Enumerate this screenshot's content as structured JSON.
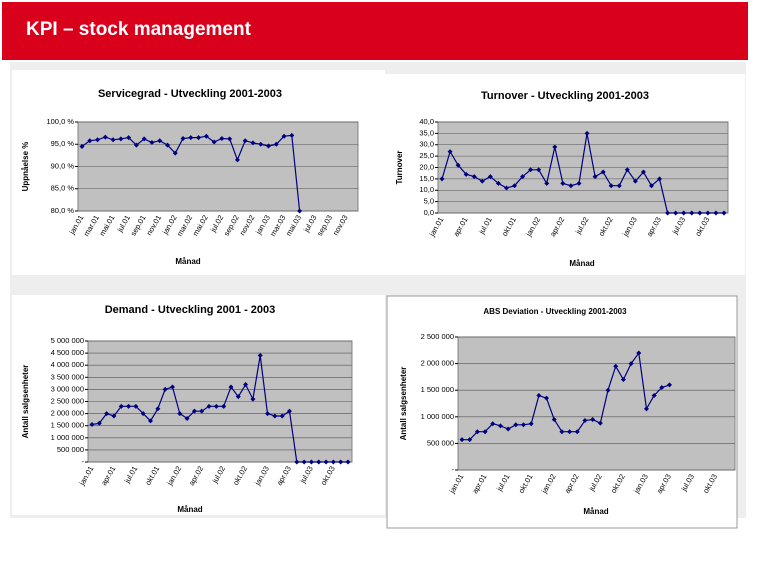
{
  "slide_title": "KPI – stock management",
  "chart_data": [
    {
      "type": "line",
      "title": "Servicegrad - Utveckling 2001-2003",
      "ylabel": "Uppnåelse %",
      "xlabel": "Månad",
      "color": "#000080",
      "grid": true,
      "categories": [
        "jan.01",
        null,
        "mar.01",
        null,
        "mai.01",
        null,
        "jul.01",
        null,
        "sep.01",
        null,
        "nov.01",
        null,
        "jan.02",
        null,
        "mar.02",
        null,
        "mai.02",
        null,
        "jul.02",
        null,
        "sep.02",
        null,
        "nov.02",
        null,
        "jan.03",
        null,
        "mar.03",
        null,
        "mai.03",
        null,
        "jul.03",
        null,
        "sep.03",
        null,
        "nov.03",
        null
      ],
      "values": [
        94.5,
        95.8,
        96.0,
        96.6,
        96.0,
        96.2,
        96.5,
        94.8,
        96.2,
        95.4,
        95.8,
        94.8,
        93.0,
        96.3,
        96.5,
        96.5,
        96.8,
        95.5,
        96.3,
        96.2,
        91.5,
        95.8,
        95.3,
        95.0,
        94.6,
        95.0,
        96.8,
        97.0,
        80.0,
        null,
        null,
        null,
        null,
        null,
        null,
        null
      ],
      "ylim": [
        80,
        100
      ],
      "yticks": [
        {
          "value": 80,
          "label": "80,0 %"
        },
        {
          "value": 85,
          "label": "85,0 %"
        },
        {
          "value": 90,
          "label": "90,0 %"
        },
        {
          "value": 95,
          "label": "95,0 %"
        },
        {
          "value": 100,
          "label": "100,0 %"
        }
      ]
    },
    {
      "type": "line",
      "title": "Turnover - Utveckling 2001-2003",
      "ylabel": "Turnover",
      "xlabel": "Månad",
      "color": "#000080",
      "grid": true,
      "categories": [
        "jan.01",
        null,
        null,
        "apr.01",
        null,
        null,
        "jul.01",
        null,
        null,
        "okt.01",
        null,
        null,
        "jan.02",
        null,
        null,
        "apr.02",
        null,
        null,
        "jul.02",
        null,
        null,
        "okt.02",
        null,
        null,
        "jan.03",
        null,
        null,
        "apr.03",
        null,
        null,
        "jul.03",
        null,
        null,
        "okt.03",
        null,
        null
      ],
      "values": [
        15,
        27,
        21,
        17,
        16,
        14,
        16,
        13,
        11,
        12,
        16,
        19,
        19,
        13,
        29,
        13,
        12,
        13,
        35,
        16,
        18,
        12,
        12,
        19,
        14,
        18,
        12,
        15,
        0,
        0,
        0,
        0,
        0,
        0,
        0,
        0
      ],
      "ylim": [
        0,
        40
      ],
      "yticks": [
        {
          "value": 0,
          "label": "0,0"
        },
        {
          "value": 5,
          "label": "5,0"
        },
        {
          "value": 10,
          "label": "10,0"
        },
        {
          "value": 15,
          "label": "15,0"
        },
        {
          "value": 20,
          "label": "20,0"
        },
        {
          "value": 25,
          "label": "25,0"
        },
        {
          "value": 30,
          "label": "30,0"
        },
        {
          "value": 35,
          "label": "35,0"
        },
        {
          "value": 40,
          "label": "40,0"
        }
      ]
    },
    {
      "type": "line",
      "title": "Demand - Utveckling 2001 - 2003",
      "ylabel": "Antall salgsenheter",
      "xlabel": "Månad",
      "color": "#000080",
      "grid": true,
      "categories": [
        "jan.01",
        null,
        null,
        "apr.01",
        null,
        null,
        "jul.01",
        null,
        null,
        "okt.01",
        null,
        null,
        "jan.02",
        null,
        null,
        "apr.02",
        null,
        null,
        "jul.02",
        null,
        null,
        "okt.02",
        null,
        null,
        "jan.03",
        null,
        null,
        "apr.03",
        null,
        null,
        "jul.03",
        null,
        null,
        "okt.03",
        null,
        null
      ],
      "values": [
        1550000,
        1600000,
        2000000,
        1900000,
        2300000,
        2300000,
        2300000,
        2000000,
        1700000,
        2200000,
        3000000,
        3100000,
        2000000,
        1800000,
        2100000,
        2100000,
        2300000,
        2300000,
        2300000,
        3100000,
        2700000,
        3200000,
        2600000,
        4400000,
        2000000,
        1900000,
        1900000,
        2100000,
        0,
        0,
        0,
        0,
        0,
        0,
        0,
        0
      ],
      "ylim": [
        0,
        5000000
      ],
      "yticks": [
        {
          "value": 0,
          "label": "-"
        },
        {
          "value": 500000,
          "label": "500 000"
        },
        {
          "value": 1000000,
          "label": "1 000 000"
        },
        {
          "value": 1500000,
          "label": "1 500 000"
        },
        {
          "value": 2000000,
          "label": "2 000 000"
        },
        {
          "value": 2500000,
          "label": "2 500 000"
        },
        {
          "value": 3000000,
          "label": "3 000 000"
        },
        {
          "value": 3500000,
          "label": "3 500 000"
        },
        {
          "value": 4000000,
          "label": "4 000 000"
        },
        {
          "value": 4500000,
          "label": "4 500 000"
        },
        {
          "value": 5000000,
          "label": "5 000 000"
        }
      ]
    },
    {
      "type": "line",
      "title": "ABS Deviation - Utveckling 2001-2003",
      "ylabel": "Antall salgsenheter",
      "xlabel": "Månad",
      "color": "#000080",
      "grid": true,
      "categories": [
        "jan.01",
        null,
        null,
        "apr.01",
        null,
        null,
        "jul.01",
        null,
        null,
        "okt.01",
        null,
        null,
        "jan.02",
        null,
        null,
        "apr.02",
        null,
        null,
        "jul.02",
        null,
        null,
        "okt.02",
        null,
        null,
        "jan.03",
        null,
        null,
        "apr.03",
        null,
        null,
        "jul.03",
        null,
        null,
        "okt.03",
        null,
        null
      ],
      "values": [
        570000,
        570000,
        720000,
        720000,
        870000,
        830000,
        770000,
        850000,
        850000,
        870000,
        1400000,
        1350000,
        950000,
        720000,
        720000,
        720000,
        930000,
        950000,
        880000,
        1500000,
        1950000,
        1700000,
        2000000,
        2200000,
        1150000,
        1400000,
        1550000,
        1600000,
        null,
        null,
        null,
        null,
        null,
        null,
        null,
        null
      ],
      "ylim": [
        0,
        2500000
      ],
      "yticks": [
        {
          "value": 0,
          "label": "-"
        },
        {
          "value": 500000,
          "label": "500 000"
        },
        {
          "value": 1000000,
          "label": "1 000 000"
        },
        {
          "value": 1500000,
          "label": "1 500 000"
        },
        {
          "value": 2000000,
          "label": "2 000 000"
        },
        {
          "value": 2500000,
          "label": "2 500 000"
        }
      ]
    }
  ]
}
